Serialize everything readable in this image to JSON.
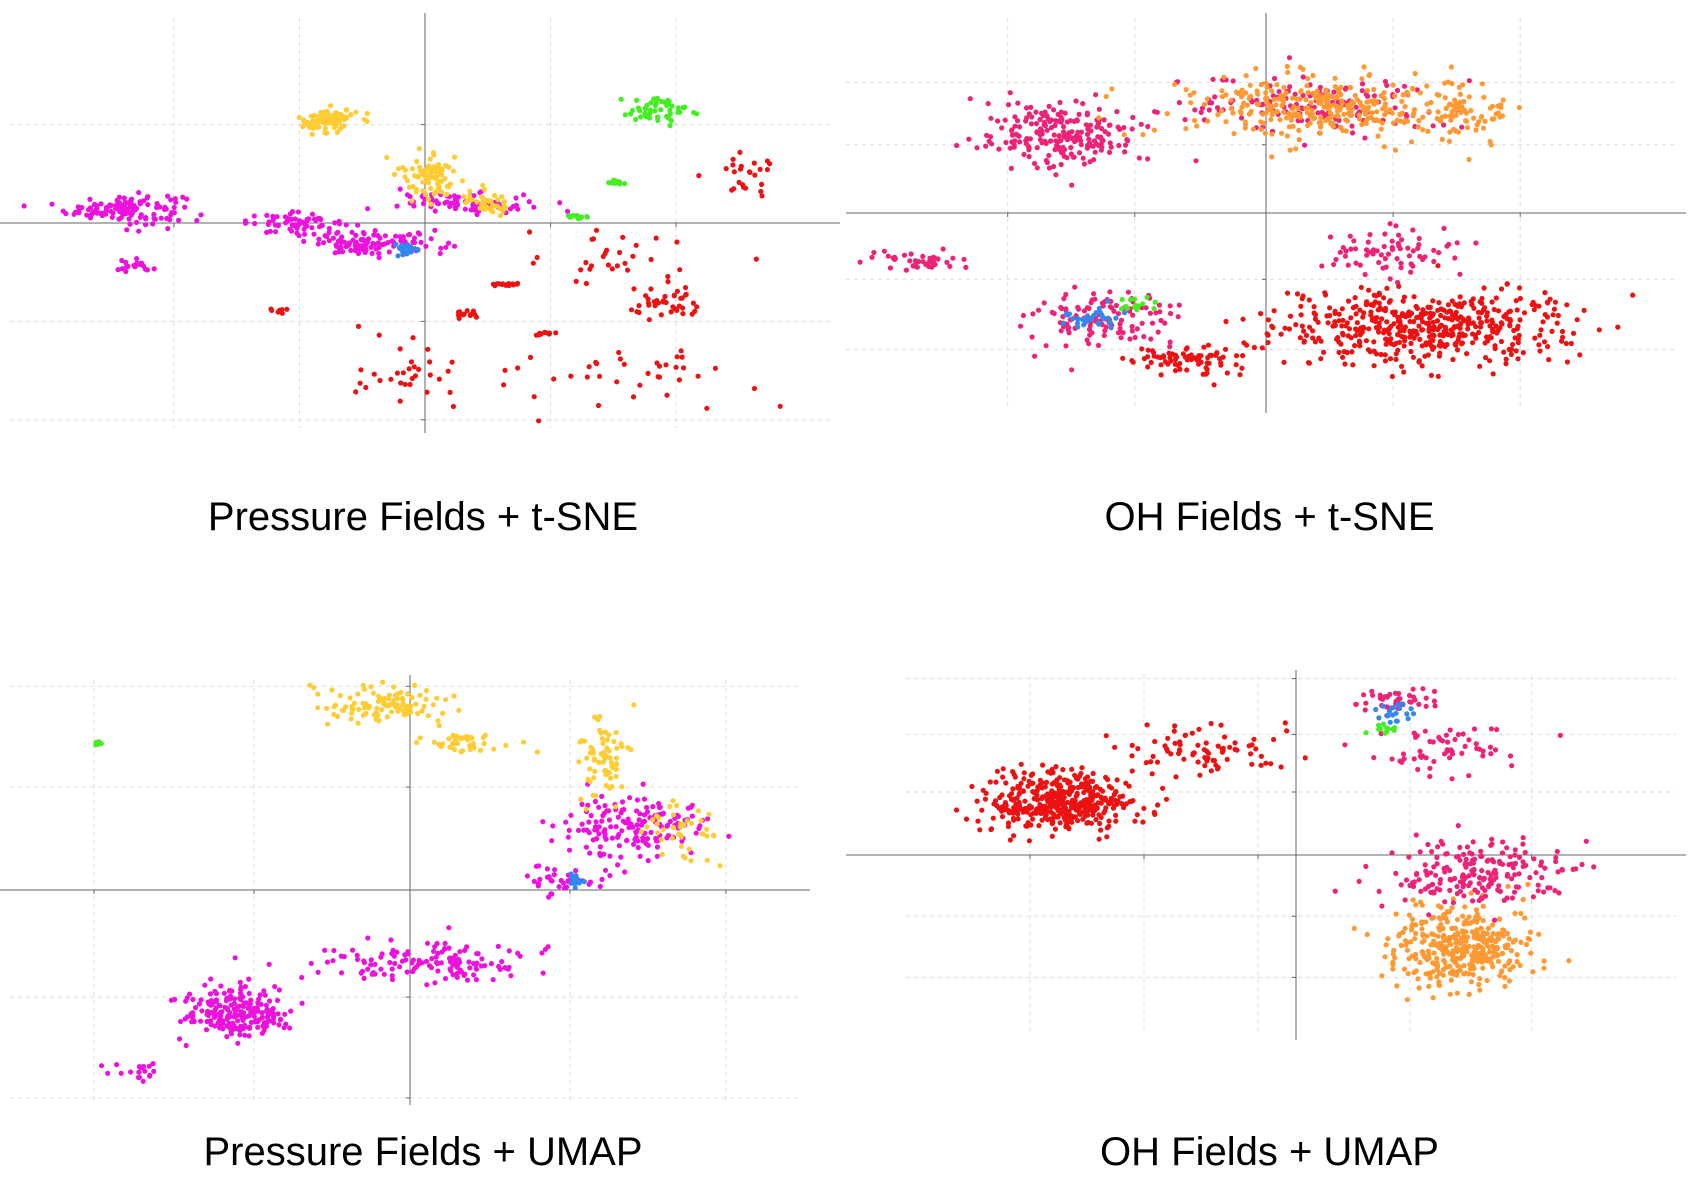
{
  "colors": {
    "magenta": "#ee11dd",
    "gold": "#ffcc33",
    "green": "#44ee22",
    "red": "#ee1111",
    "blue": "#3388ee",
    "pink": "#ee2277",
    "orange": "#ff9933",
    "axis": "#666666",
    "grid": "#dddddd"
  },
  "panels": [
    {
      "id": "pressure-tsne",
      "caption": "Pressure Fields + t-SNE",
      "chart_data": {
        "type": "scatter",
        "title": "",
        "xlabel": "",
        "ylabel": "",
        "xlim": [
          -1.0,
          1.0
        ],
        "ylim": [
          -1.0,
          1.0
        ],
        "grid": true,
        "legend": "none",
        "x_gridlines": [
          -0.62,
          -0.31,
          0.31,
          0.62
        ],
        "y_gridlines": [
          -0.96,
          -0.48,
          0.48
        ],
        "clusters": [
          {
            "color": "magenta",
            "center": [
              -0.74,
              0.07
            ],
            "spread": [
              0.12,
              0.06
            ],
            "count": 130
          },
          {
            "color": "magenta",
            "center": [
              -0.32,
              0.0
            ],
            "spread": [
              0.1,
              0.04
            ],
            "count": 60
          },
          {
            "color": "magenta",
            "center": [
              -0.12,
              -0.1
            ],
            "spread": [
              0.14,
              0.05
            ],
            "count": 110
          },
          {
            "color": "magenta",
            "center": [
              0.1,
              0.1
            ],
            "spread": [
              0.14,
              0.04
            ],
            "count": 80
          },
          {
            "color": "magenta",
            "center": [
              -0.72,
              -0.22
            ],
            "spread": [
              0.04,
              0.03
            ],
            "count": 20
          },
          {
            "color": "gold",
            "center": [
              -0.24,
              0.5
            ],
            "spread": [
              0.06,
              0.05
            ],
            "count": 90
          },
          {
            "color": "gold",
            "center": [
              0.01,
              0.24
            ],
            "spread": [
              0.06,
              0.1
            ],
            "count": 80
          },
          {
            "color": "gold",
            "center": [
              0.16,
              0.1
            ],
            "spread": [
              0.05,
              0.05
            ],
            "count": 40
          },
          {
            "color": "blue",
            "center": [
              -0.05,
              -0.13
            ],
            "spread": [
              0.02,
              0.03
            ],
            "count": 25
          },
          {
            "color": "green",
            "center": [
              0.58,
              0.55
            ],
            "spread": [
              0.09,
              0.06
            ],
            "count": 50
          },
          {
            "color": "green",
            "center": [
              0.47,
              0.2
            ],
            "spread": [
              0.02,
              0.01
            ],
            "count": 12
          },
          {
            "color": "green",
            "center": [
              0.38,
              0.03
            ],
            "spread": [
              0.02,
              0.01
            ],
            "count": 15
          },
          {
            "color": "red",
            "center": [
              0.6,
              -0.4
            ],
            "spread": [
              0.08,
              0.06
            ],
            "count": 40
          },
          {
            "color": "red",
            "center": [
              0.2,
              -0.3
            ],
            "spread": [
              0.03,
              0.01
            ],
            "count": 16
          },
          {
            "color": "red",
            "center": [
              0.1,
              -0.45
            ],
            "spread": [
              0.03,
              0.02
            ],
            "count": 14
          },
          {
            "color": "red",
            "center": [
              -0.36,
              -0.43
            ],
            "spread": [
              0.02,
              0.01
            ],
            "count": 10
          },
          {
            "color": "red",
            "center": [
              0.3,
              -0.54
            ],
            "spread": [
              0.02,
              0.01
            ],
            "count": 10
          },
          {
            "color": "red",
            "center": [
              0.79,
              0.25
            ],
            "spread": [
              0.06,
              0.1
            ],
            "count": 25
          },
          {
            "color": "red",
            "center": [
              0.5,
              -0.75
            ],
            "spread": [
              0.28,
              0.12
            ],
            "count": 40
          },
          {
            "color": "red",
            "center": [
              -0.05,
              -0.75
            ],
            "spread": [
              0.12,
              0.14
            ],
            "count": 30
          },
          {
            "color": "red",
            "center": [
              0.5,
              -0.18
            ],
            "spread": [
              0.2,
              0.12
            ],
            "count": 30
          }
        ]
      }
    },
    {
      "id": "oh-tsne",
      "caption": "OH Fields + t-SNE",
      "chart_data": {
        "type": "scatter",
        "title": "",
        "xlabel": "",
        "ylabel": "",
        "xlim": [
          -1.0,
          1.0
        ],
        "ylim": [
          -1.0,
          1.0
        ],
        "grid": true,
        "legend": "none",
        "x_gridlines": [
          -0.63,
          -0.32,
          0.31,
          0.62
        ],
        "y_gridlines": [
          -0.7,
          -0.34,
          0.35,
          0.67
        ],
        "clusters": [
          {
            "color": "pink",
            "center": [
              -0.5,
              0.4
            ],
            "spread": [
              0.18,
              0.13
            ],
            "count": 220
          },
          {
            "color": "pink",
            "center": [
              0.12,
              0.55
            ],
            "spread": [
              0.3,
              0.12
            ],
            "count": 140
          },
          {
            "color": "orange",
            "center": [
              0.15,
              0.55
            ],
            "spread": [
              0.3,
              0.13
            ],
            "count": 330
          },
          {
            "color": "orange",
            "center": [
              0.5,
              0.5
            ],
            "spread": [
              0.08,
              0.12
            ],
            "count": 50
          },
          {
            "color": "pink",
            "center": [
              -0.4,
              -0.55
            ],
            "spread": [
              0.16,
              0.13
            ],
            "count": 120
          },
          {
            "color": "pink",
            "center": [
              -0.84,
              -0.24
            ],
            "spread": [
              0.1,
              0.04
            ],
            "count": 40
          },
          {
            "color": "pink",
            "center": [
              0.3,
              -0.2
            ],
            "spread": [
              0.15,
              0.1
            ],
            "count": 70
          },
          {
            "color": "red",
            "center": [
              0.4,
              -0.58
            ],
            "spread": [
              0.3,
              0.15
            ],
            "count": 500
          },
          {
            "color": "red",
            "center": [
              -0.2,
              -0.75
            ],
            "spread": [
              0.12,
              0.07
            ],
            "count": 80
          },
          {
            "color": "blue",
            "center": [
              -0.42,
              -0.55
            ],
            "spread": [
              0.06,
              0.05
            ],
            "count": 30
          },
          {
            "color": "green",
            "center": [
              -0.32,
              -0.48
            ],
            "spread": [
              0.04,
              0.03
            ],
            "count": 14
          }
        ]
      }
    },
    {
      "id": "pressure-umap",
      "caption": "Pressure Fields + UMAP",
      "chart_data": {
        "type": "scatter",
        "title": "",
        "xlabel": "",
        "ylabel": "",
        "xlim": [
          -1.0,
          1.0
        ],
        "ylim": [
          -1.0,
          1.0
        ],
        "grid": true,
        "legend": "none",
        "x_gridlines": [
          -0.81,
          -0.4,
          0.41,
          0.81
        ],
        "y_gridlines": [
          -0.99,
          -0.51,
          0.49,
          0.97
        ],
        "clusters": [
          {
            "color": "magenta",
            "center": [
              -0.44,
              -0.58
            ],
            "spread": [
              0.11,
              0.1
            ],
            "count": 220
          },
          {
            "color": "magenta",
            "center": [
              0.07,
              -0.35
            ],
            "spread": [
              0.25,
              0.08
            ],
            "count": 140
          },
          {
            "color": "magenta",
            "center": [
              -0.7,
              -0.86
            ],
            "spread": [
              0.05,
              0.04
            ],
            "count": 18
          },
          {
            "color": "magenta",
            "center": [
              0.57,
              0.3
            ],
            "spread": [
              0.15,
              0.14
            ],
            "count": 160
          },
          {
            "color": "magenta",
            "center": [
              0.4,
              0.05
            ],
            "spread": [
              0.08,
              0.06
            ],
            "count": 40
          },
          {
            "color": "gold",
            "center": [
              -0.05,
              0.88
            ],
            "spread": [
              0.15,
              0.07
            ],
            "count": 110
          },
          {
            "color": "gold",
            "center": [
              0.14,
              0.7
            ],
            "spread": [
              0.09,
              0.05
            ],
            "count": 40
          },
          {
            "color": "gold",
            "center": [
              0.5,
              0.65
            ],
            "spread": [
              0.05,
              0.15
            ],
            "count": 70
          },
          {
            "color": "gold",
            "center": [
              0.7,
              0.3
            ],
            "spread": [
              0.07,
              0.15
            ],
            "count": 40
          },
          {
            "color": "blue",
            "center": [
              0.43,
              0.04
            ],
            "spread": [
              0.02,
              0.03
            ],
            "count": 16
          },
          {
            "color": "green",
            "center": [
              -0.8,
              0.7
            ],
            "spread": [
              0.01,
              0.01
            ],
            "count": 6
          }
        ]
      }
    },
    {
      "id": "oh-umap",
      "caption": "OH Fields + UMAP",
      "chart_data": {
        "type": "scatter",
        "title": "",
        "xlabel": "",
        "ylabel": "",
        "xlim": [
          -1.0,
          1.0
        ],
        "ylim": [
          -1.0,
          1.0
        ],
        "grid": true,
        "legend": "none",
        "x_gridlines": [
          -0.7,
          -0.4,
          -0.1,
          0.3,
          0.62
        ],
        "y_gridlines": [
          -0.68,
          -0.34,
          0.35,
          0.67,
          0.98
        ],
        "clusters": [
          {
            "color": "red",
            "center": [
              -0.62,
              0.3
            ],
            "spread": [
              0.16,
              0.14
            ],
            "count": 420
          },
          {
            "color": "red",
            "center": [
              -0.25,
              0.58
            ],
            "spread": [
              0.18,
              0.1
            ],
            "count": 80
          },
          {
            "color": "orange",
            "center": [
              0.43,
              -0.5
            ],
            "spread": [
              0.14,
              0.2
            ],
            "count": 380
          },
          {
            "color": "pink",
            "center": [
              0.47,
              -0.1
            ],
            "spread": [
              0.2,
              0.18
            ],
            "count": 200
          },
          {
            "color": "pink",
            "center": [
              0.37,
              0.6
            ],
            "spread": [
              0.16,
              0.12
            ],
            "count": 60
          },
          {
            "color": "pink",
            "center": [
              0.28,
              0.86
            ],
            "spread": [
              0.1,
              0.06
            ],
            "count": 40
          },
          {
            "color": "blue",
            "center": [
              0.26,
              0.78
            ],
            "spread": [
              0.04,
              0.05
            ],
            "count": 20
          },
          {
            "color": "green",
            "center": [
              0.23,
              0.7
            ],
            "spread": [
              0.04,
              0.03
            ],
            "count": 12
          }
        ]
      }
    }
  ]
}
